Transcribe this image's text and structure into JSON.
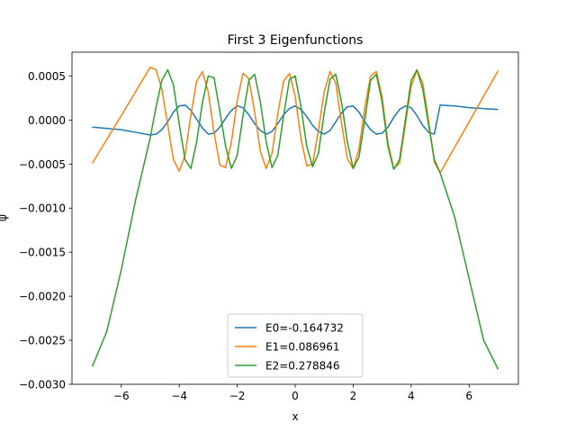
{
  "chart_data": {
    "type": "line",
    "title": "First 3 Eigenfunctions",
    "xlabel": "x",
    "ylabel": "ψ",
    "xlim": [
      -7.7,
      7.7
    ],
    "ylim": [
      -0.003,
      0.00077
    ],
    "xticks": [
      -6,
      -4,
      -2,
      0,
      2,
      4,
      6
    ],
    "xtick_labels": [
      "−6",
      "−4",
      "−2",
      "0",
      "2",
      "4",
      "6"
    ],
    "yticks": [
      -0.003,
      -0.0025,
      -0.002,
      -0.0015,
      -0.001,
      -0.0005,
      0.0,
      0.0005
    ],
    "ytick_labels": [
      "−0.0030",
      "−0.0025",
      "−0.0020",
      "−0.0015",
      "−0.0010",
      "−0.0005",
      "0.0000",
      "0.0005"
    ],
    "grid": false,
    "legend_position": "lower center",
    "series": [
      {
        "name": "E0=-0.164732",
        "color": "#1f77b4",
        "x": [
          -7.0,
          -6.0,
          -5.5,
          -5.0,
          -4.8,
          -4.6,
          -4.4,
          -4.2,
          -4.0,
          -3.8,
          -3.6,
          -3.4,
          -3.2,
          -3.0,
          -2.8,
          -2.6,
          -2.4,
          -2.2,
          -2.0,
          -1.8,
          -1.6,
          -1.4,
          -1.2,
          -1.0,
          -0.8,
          -0.6,
          -0.4,
          -0.2,
          0.0,
          0.2,
          0.4,
          0.6,
          0.8,
          1.0,
          1.2,
          1.4,
          1.6,
          1.8,
          2.0,
          2.2,
          2.4,
          2.6,
          2.8,
          3.0,
          3.2,
          3.4,
          3.6,
          3.8,
          4.0,
          4.2,
          4.4,
          4.6,
          4.8,
          5.0,
          5.5,
          6.0,
          7.0
        ],
        "y": [
          -8e-05,
          -0.00011,
          -0.00014,
          -0.00017,
          -0.00016,
          -0.00011,
          -2e-05,
          9e-05,
          0.00016,
          0.00017,
          0.00011,
          1e-05,
          -9e-05,
          -0.00016,
          -0.00015,
          -8e-05,
          2e-05,
          0.00011,
          0.00016,
          0.00014,
          6e-05,
          -4e-05,
          -0.00012,
          -0.00016,
          -0.00013,
          -4e-05,
          6e-05,
          0.00013,
          0.00016,
          0.00012,
          4e-05,
          -6e-05,
          -0.00013,
          -0.00016,
          -0.00012,
          -2e-05,
          8e-05,
          0.00015,
          0.00016,
          9e-05,
          -2e-05,
          -0.00011,
          -0.00016,
          -0.00015,
          -8e-05,
          3e-05,
          0.00012,
          0.00016,
          0.00014,
          5e-05,
          -6e-05,
          -0.00014,
          -0.00016,
          0.00017,
          0.00016,
          0.00014,
          0.00012
        ]
      },
      {
        "name": "E1=0.086961",
        "color": "#ff7f0e",
        "x": [
          -7.0,
          -6.0,
          -5.0,
          -4.8,
          -4.6,
          -4.4,
          -4.2,
          -4.0,
          -3.8,
          -3.6,
          -3.4,
          -3.2,
          -3.0,
          -2.8,
          -2.6,
          -2.4,
          -2.2,
          -2.0,
          -1.8,
          -1.6,
          -1.4,
          -1.2,
          -1.0,
          -0.8,
          -0.6,
          -0.4,
          -0.2,
          0.0,
          0.2,
          0.4,
          0.6,
          0.8,
          1.0,
          1.2,
          1.4,
          1.6,
          1.8,
          2.0,
          2.2,
          2.4,
          2.6,
          2.8,
          3.0,
          3.2,
          3.4,
          3.6,
          3.8,
          4.0,
          4.2,
          4.4,
          4.6,
          4.8,
          5.0,
          6.0,
          7.0
        ],
        "y": [
          -0.00049,
          5e-05,
          0.0006,
          0.00057,
          0.00035,
          -5e-05,
          -0.00045,
          -0.00058,
          -0.0004,
          5e-05,
          0.00044,
          0.00055,
          0.00032,
          -0.00014,
          -0.00051,
          -0.00054,
          -0.00025,
          0.00022,
          0.00053,
          0.00047,
          9e-05,
          -0.00036,
          -0.00055,
          -0.00038,
          7e-05,
          0.00044,
          0.00053,
          0.00027,
          -0.00021,
          -0.00052,
          -0.0005,
          -0.00012,
          0.00032,
          0.00055,
          0.00042,
          -4e-05,
          -0.00044,
          -0.00055,
          -0.00033,
          0.00014,
          0.0005,
          0.00055,
          0.00026,
          -0.00026,
          -0.00055,
          -0.00049,
          -5e-05,
          0.00038,
          0.00057,
          0.00042,
          0.0,
          -0.00048,
          -0.0006,
          -2e-05,
          0.00056
        ]
      },
      {
        "name": "E2=0.278846",
        "color": "#2ca02c",
        "x": [
          -7.0,
          -6.5,
          -6.0,
          -5.5,
          -5.0,
          -4.8,
          -4.6,
          -4.4,
          -4.2,
          -4.0,
          -3.8,
          -3.6,
          -3.4,
          -3.2,
          -3.0,
          -2.8,
          -2.6,
          -2.4,
          -2.2,
          -2.0,
          -1.8,
          -1.6,
          -1.4,
          -1.2,
          -1.0,
          -0.8,
          -0.6,
          -0.4,
          -0.2,
          0.0,
          0.2,
          0.4,
          0.6,
          0.8,
          1.0,
          1.2,
          1.4,
          1.6,
          1.8,
          2.0,
          2.2,
          2.4,
          2.6,
          2.8,
          3.0,
          3.2,
          3.4,
          3.6,
          3.8,
          4.0,
          4.2,
          4.4,
          4.6,
          4.8,
          5.0,
          5.5,
          6.0,
          6.5,
          7.0
        ],
        "y": [
          -0.0028,
          -0.0024,
          -0.0017,
          -0.0009,
          -0.0002,
          0.00015,
          0.00045,
          0.00057,
          0.0004,
          -5e-05,
          -0.00045,
          -0.00055,
          -0.00025,
          0.0002,
          0.0005,
          0.00048,
          0.0001,
          -0.0003,
          -0.00055,
          -0.0004,
          5e-05,
          0.00045,
          0.00052,
          0.0002,
          -0.00025,
          -0.00054,
          -0.0004,
          5e-05,
          0.00046,
          0.0005,
          0.00015,
          -0.0003,
          -0.00053,
          -0.00038,
          8e-05,
          0.00046,
          0.00052,
          0.0002,
          -0.00025,
          -0.00055,
          -0.00042,
          0.0,
          0.00045,
          0.00052,
          0.0002,
          -0.0003,
          -0.00056,
          -0.00045,
          0.0,
          0.00045,
          0.00057,
          0.00035,
          -5e-05,
          -0.00045,
          -0.0006,
          -0.0011,
          -0.0018,
          -0.0025,
          -0.00283
        ]
      }
    ]
  }
}
